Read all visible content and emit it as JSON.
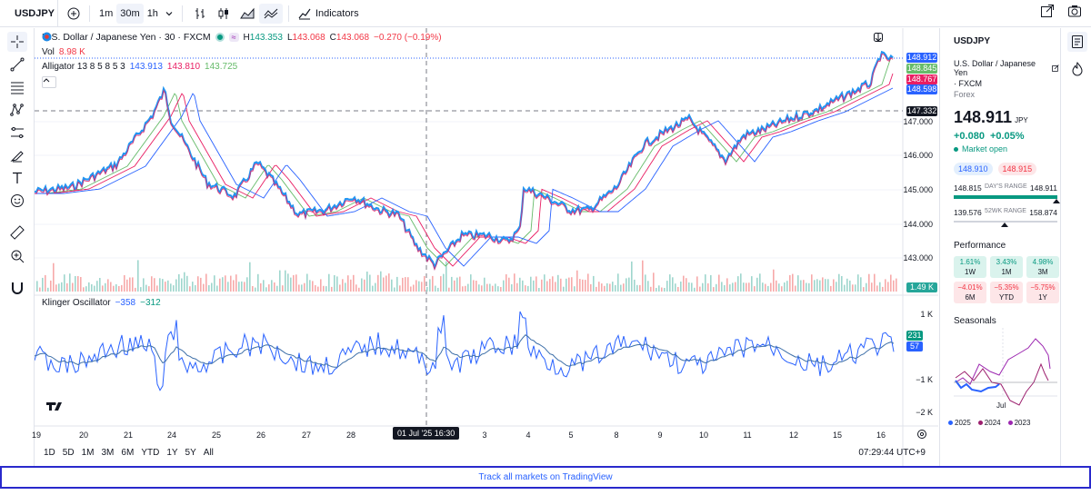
{
  "toolbar": {
    "symbol": "USDJPY",
    "intervals": [
      "1m",
      "30m",
      "1h"
    ],
    "active_interval": "30m",
    "indicators_label": "Indicators"
  },
  "legend": {
    "title": "U.S. Dollar / Japanese Yen · 30 · FXCM",
    "h_label": "H",
    "h_value": "143.353",
    "l_label": "L",
    "l_value": "143.068",
    "c_label": "C",
    "c_value": "143.068",
    "change": "−0.270 (−0.19%)",
    "vol_label": "Vol",
    "vol_value": "8.98 K",
    "alligator_label": "Alligator 13 8 5 8 5 3",
    "alligator_v1": "143.913",
    "alligator_v2": "143.810",
    "alligator_v3": "143.725",
    "klinger_label": "Klinger Oscillator",
    "klinger_v1": "−358",
    "klinger_v2": "−312"
  },
  "price_axis": {
    "labels": [
      "147.000",
      "146.000",
      "145.000",
      "144.000",
      "143.000"
    ],
    "tags": [
      {
        "text": "148.912",
        "color": "#2962ff"
      },
      {
        "text": "148.845",
        "color": "#089981"
      },
      {
        "text": "148.767",
        "color": "#e91e63"
      },
      {
        "text": "148.598",
        "color": "#2962ff"
      },
      {
        "text": "147.332",
        "color": "#131722"
      }
    ],
    "vol_tag": "1.49 K",
    "osc_labels": [
      "1 K",
      "−1 K",
      "−2 K"
    ],
    "osc_tags": [
      {
        "text": "231",
        "color": "#089981"
      },
      {
        "text": "57",
        "color": "#2962ff"
      }
    ]
  },
  "time_axis": {
    "labels": [
      "19",
      "20",
      "21",
      "24",
      "25",
      "26",
      "27",
      "28",
      "3",
      "4",
      "5",
      "8",
      "9",
      "10",
      "11",
      "12",
      "15",
      "16"
    ],
    "crosshair_label": "01 Jul '25  16:30"
  },
  "ranges": [
    "1D",
    "5D",
    "1M",
    "3M",
    "6M",
    "YTD",
    "1Y",
    "5Y",
    "All"
  ],
  "clock": "07:29:44 UTC+9",
  "panel": {
    "symbol": "USDJPY",
    "name": "U.S. Dollar / Japanese Yen",
    "exchange": "· FXCM",
    "type": "Forex",
    "price": "148.911",
    "currency": "JPY",
    "change": "+0.080",
    "change_pct": "+0.05%",
    "status": "Market open",
    "bid": "148.910",
    "ask": "148.915",
    "day_low": "148.815",
    "day_range_label": "DAY'S RANGE",
    "day_high": "148.911",
    "wk_low": "139.576",
    "wk_range_label": "52WK RANGE",
    "wk_high": "158.874",
    "performance_title": "Performance",
    "performance": [
      {
        "value": "1.61%",
        "label": "1W",
        "sign": "pos"
      },
      {
        "value": "3.43%",
        "label": "1M",
        "sign": "pos"
      },
      {
        "value": "4.98%",
        "label": "3M",
        "sign": "pos"
      },
      {
        "value": "−4.01%",
        "label": "6M",
        "sign": "neg"
      },
      {
        "value": "−5.35%",
        "label": "YTD",
        "sign": "neg"
      },
      {
        "value": "−5.75%",
        "label": "1Y",
        "sign": "neg"
      }
    ],
    "seasonals_title": "Seasonals",
    "seasonals_month": "Jul",
    "seasonals_legend": [
      {
        "year": "2025",
        "color": "#2962ff"
      },
      {
        "year": "2024",
        "color": "#9c1f6e"
      },
      {
        "year": "2023",
        "color": "#9c27b0"
      }
    ]
  },
  "footer_text": "Track all markets on TradingView"
}
